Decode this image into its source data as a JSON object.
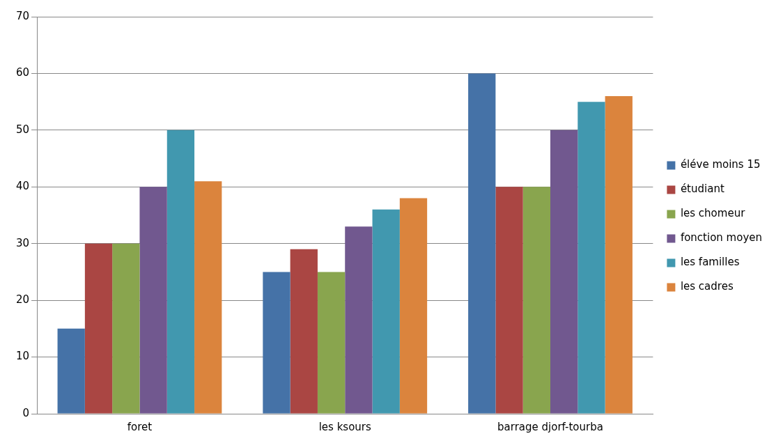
{
  "chart_data": {
    "type": "bar",
    "categories": [
      "foret",
      "les ksours",
      "barrage djorf-tourba"
    ],
    "series": [
      {
        "name": "éléve moins 15",
        "color": "#4572a7",
        "values": [
          15,
          25,
          60
        ]
      },
      {
        "name": "étudiant",
        "color": "#aa4643",
        "values": [
          30,
          29,
          40
        ]
      },
      {
        "name": "les chomeur",
        "color": "#89a54e",
        "values": [
          30,
          25,
          40
        ]
      },
      {
        "name": "fonction moyen",
        "color": "#71588f",
        "values": [
          40,
          33,
          50
        ]
      },
      {
        "name": "les familles",
        "color": "#4198af",
        "values": [
          50,
          36,
          55
        ]
      },
      {
        "name": "les cadres",
        "color": "#db843d",
        "values": [
          41,
          38,
          56
        ]
      }
    ],
    "ylim": [
      0,
      70
    ],
    "yticks": [
      0,
      10,
      20,
      30,
      40,
      50,
      60,
      70
    ],
    "grid": "y",
    "legend": "right"
  }
}
